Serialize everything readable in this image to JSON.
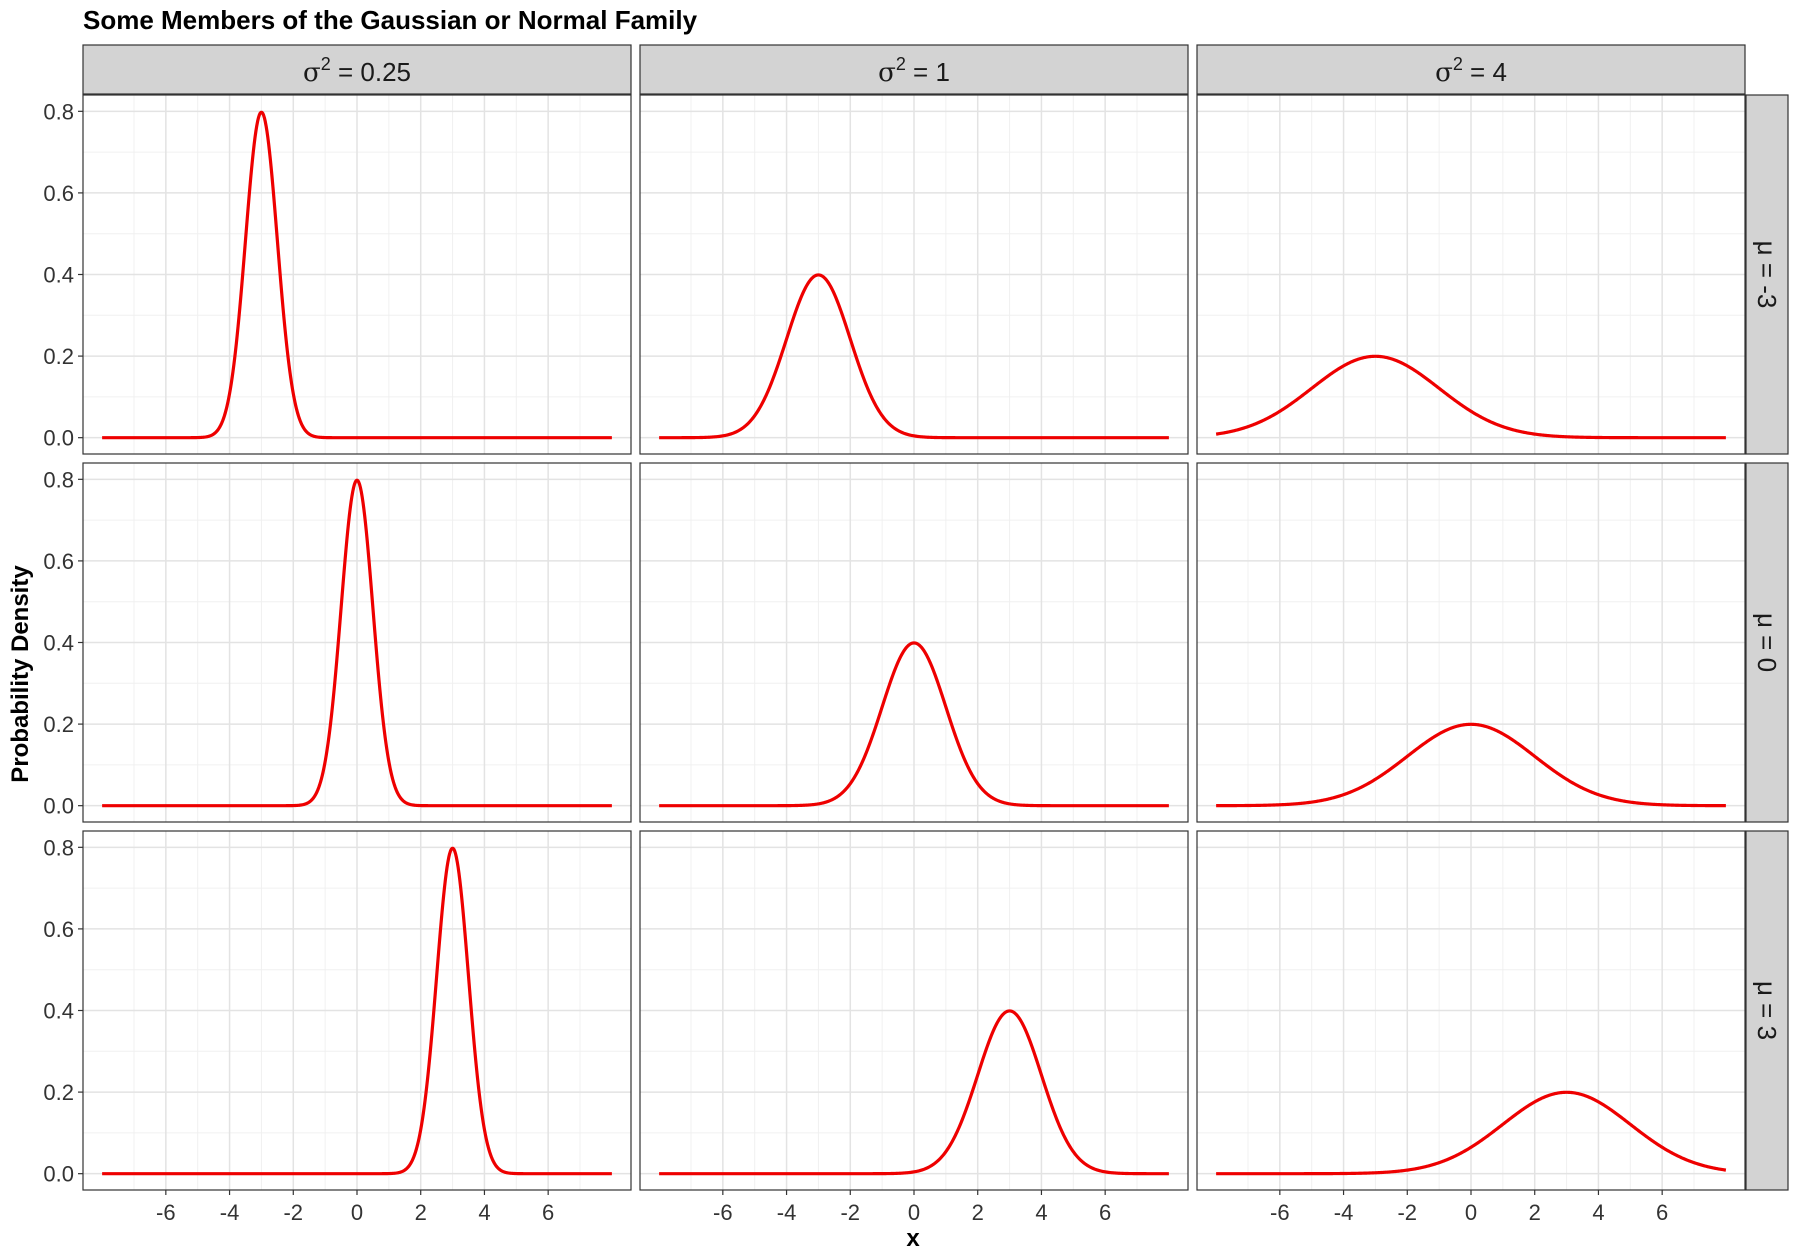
{
  "chart_data": {
    "type": "line",
    "title": "Some Members of the Gaussian or Normal Family",
    "xlabel": "x",
    "ylabel": "Probability Density",
    "facet_columns": {
      "symbol": "σ",
      "superscript": "2",
      "labels": [
        "0.25",
        "1",
        "4"
      ],
      "variance": [
        0.25,
        1,
        4
      ]
    },
    "facet_rows": {
      "labels": [
        "μ = -3",
        "μ = 0",
        "μ = 3"
      ],
      "mean": [
        -3,
        0,
        3
      ]
    },
    "x_range": [
      -8,
      8
    ],
    "xlim": [
      -8.6,
      8.6
    ],
    "ylim": [
      -0.04,
      0.84
    ],
    "x_ticks": [
      -6,
      -4,
      -2,
      0,
      2,
      4,
      6
    ],
    "y_ticks": [
      0.0,
      0.2,
      0.4,
      0.6,
      0.8
    ],
    "y_tick_labels": [
      "0.0",
      "0.2",
      "0.4",
      "0.6",
      "0.8"
    ],
    "line_color": "#EE0000",
    "grid": true
  }
}
